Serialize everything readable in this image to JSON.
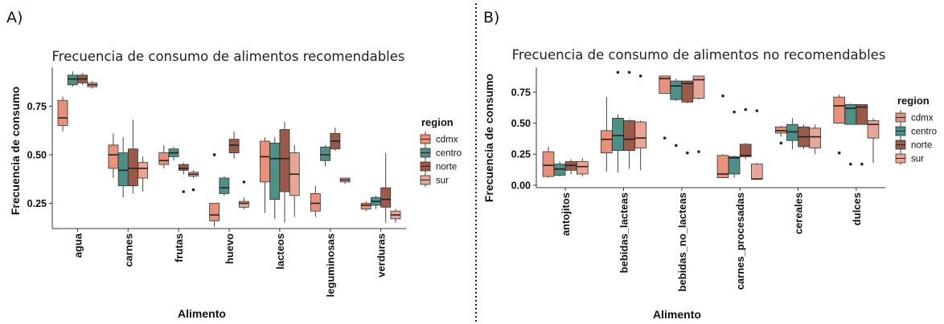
{
  "panel_labels": [
    "A)",
    "B)"
  ],
  "colors": {
    "cdmx": "#E8907A",
    "centro": "#4E8F87",
    "norte": "#9A5A4A",
    "sur": "#E8A598",
    "stroke": "#333333",
    "separator": "#222222"
  },
  "chart_data": [
    {
      "type": "box",
      "title": "Frecuencia de consumo de alimentos recomendables",
      "xlabel": "Alimento",
      "ylabel": "Frecuencia de consumo",
      "ylim": [
        0.12,
        0.95
      ],
      "yticks": [
        0.25,
        0.5,
        0.75
      ],
      "ytick_labels": [
        "0.25",
        "0.50",
        "0.75"
      ],
      "legend": {
        "title": "region",
        "entries": [
          "cdmx",
          "centro",
          "norte",
          "sur"
        ],
        "position": "right"
      },
      "categories": [
        "agua",
        "carnes",
        "frutas",
        "huevo",
        "lacteos",
        "leguminosas",
        "verduras"
      ],
      "series": [
        {
          "name": "cdmx",
          "boxes": [
            {
              "wlo": 0.62,
              "q1": 0.65,
              "med": 0.69,
              "q3": 0.78,
              "whi": 0.8,
              "out": []
            },
            {
              "wlo": 0.38,
              "q1": 0.43,
              "med": 0.5,
              "q3": 0.55,
              "whi": 0.61,
              "out": []
            },
            {
              "wlo": 0.43,
              "q1": 0.45,
              "med": 0.47,
              "q3": 0.51,
              "whi": 0.55,
              "out": []
            },
            {
              "wlo": 0.13,
              "q1": 0.16,
              "med": 0.19,
              "q3": 0.25,
              "whi": 0.25,
              "out": [
                0.5
              ]
            },
            {
              "wlo": 0.2,
              "q1": 0.36,
              "med": 0.49,
              "q3": 0.57,
              "whi": 0.59,
              "out": []
            },
            {
              "wlo": 0.18,
              "q1": 0.21,
              "med": 0.25,
              "q3": 0.3,
              "whi": 0.34,
              "out": []
            },
            {
              "wlo": 0.21,
              "q1": 0.22,
              "med": 0.24,
              "q3": 0.25,
              "whi": 0.26,
              "out": []
            }
          ]
        },
        {
          "name": "centro",
          "boxes": [
            {
              "wlo": 0.85,
              "q1": 0.86,
              "med": 0.89,
              "q3": 0.91,
              "whi": 0.93,
              "out": []
            },
            {
              "wlo": 0.28,
              "q1": 0.34,
              "med": 0.42,
              "q3": 0.51,
              "whi": 0.59,
              "out": []
            },
            {
              "wlo": 0.47,
              "q1": 0.49,
              "med": 0.51,
              "q3": 0.53,
              "whi": 0.54,
              "out": []
            },
            {
              "wlo": 0.29,
              "q1": 0.3,
              "med": 0.33,
              "q3": 0.38,
              "whi": 0.39,
              "out": []
            },
            {
              "wlo": 0.17,
              "q1": 0.27,
              "med": 0.48,
              "q3": 0.56,
              "whi": 0.59,
              "out": []
            },
            {
              "wlo": 0.44,
              "q1": 0.47,
              "med": 0.5,
              "q3": 0.54,
              "whi": 0.55,
              "out": []
            },
            {
              "wlo": 0.22,
              "q1": 0.24,
              "med": 0.26,
              "q3": 0.28,
              "whi": 0.29,
              "out": []
            }
          ]
        },
        {
          "name": "norte",
          "boxes": [
            {
              "wlo": 0.86,
              "q1": 0.87,
              "med": 0.89,
              "q3": 0.91,
              "whi": 0.92,
              "out": []
            },
            {
              "wlo": 0.3,
              "q1": 0.34,
              "med": 0.43,
              "q3": 0.53,
              "whi": 0.68,
              "out": []
            },
            {
              "wlo": 0.4,
              "q1": 0.42,
              "med": 0.43,
              "q3": 0.45,
              "whi": 0.46,
              "out": [
                0.31
              ]
            },
            {
              "wlo": 0.48,
              "q1": 0.51,
              "med": 0.55,
              "q3": 0.58,
              "whi": 0.62,
              "out": []
            },
            {
              "wlo": 0.15,
              "q1": 0.31,
              "med": 0.48,
              "q3": 0.63,
              "whi": 0.67,
              "out": []
            },
            {
              "wlo": 0.52,
              "q1": 0.53,
              "med": 0.57,
              "q3": 0.61,
              "whi": 0.64,
              "out": []
            },
            {
              "wlo": 0.15,
              "q1": 0.23,
              "med": 0.27,
              "q3": 0.33,
              "whi": 0.51,
              "out": []
            }
          ]
        },
        {
          "name": "sur",
          "boxes": [
            {
              "wlo": 0.84,
              "q1": 0.85,
              "med": 0.86,
              "q3": 0.87,
              "whi": 0.88,
              "out": []
            },
            {
              "wlo": 0.31,
              "q1": 0.38,
              "med": 0.43,
              "q3": 0.46,
              "whi": 0.49,
              "out": []
            },
            {
              "wlo": 0.38,
              "q1": 0.39,
              "med": 0.4,
              "q3": 0.41,
              "whi": 0.42,
              "out": [
                0.32
              ]
            },
            {
              "wlo": 0.22,
              "q1": 0.23,
              "med": 0.25,
              "q3": 0.26,
              "whi": 0.28,
              "out": [
                0.36
              ]
            },
            {
              "wlo": 0.18,
              "q1": 0.29,
              "med": 0.4,
              "q3": 0.51,
              "whi": 0.55,
              "out": []
            },
            {
              "wlo": 0.35,
              "q1": 0.36,
              "med": 0.37,
              "q3": 0.38,
              "whi": 0.38,
              "out": []
            },
            {
              "wlo": 0.15,
              "q1": 0.17,
              "med": 0.19,
              "q3": 0.21,
              "whi": 0.22,
              "out": []
            }
          ]
        }
      ]
    },
    {
      "type": "box",
      "title": "Frecuencia de consumo de alimentos no recomendables",
      "xlabel": "Alimento",
      "ylabel": "Frecuencia de consumo",
      "ylim": [
        -0.02,
        0.95
      ],
      "yticks": [
        0.0,
        0.25,
        0.5,
        0.75
      ],
      "ytick_labels": [
        "0.00",
        "0.25",
        "0.50",
        "0.75"
      ],
      "legend": {
        "title": "region",
        "entries": [
          "cdmx",
          "centro",
          "norte",
          "sur"
        ],
        "position": "right"
      },
      "categories": [
        "antojitos",
        "bebidas_lacteas",
        "bebidas_no_lacteas",
        "carnes_procesadas",
        "cereales",
        "dulces"
      ],
      "series": [
        {
          "name": "cdmx",
          "boxes": [
            {
              "wlo": 0.06,
              "q1": 0.07,
              "med": 0.16,
              "q3": 0.27,
              "whi": 0.31,
              "out": []
            },
            {
              "wlo": 0.11,
              "q1": 0.26,
              "med": 0.37,
              "q3": 0.44,
              "whi": 0.71,
              "out": []
            },
            {
              "wlo": 0.74,
              "q1": 0.74,
              "med": 0.86,
              "q3": 0.88,
              "whi": 0.88,
              "out": [
                0.38
              ]
            },
            {
              "wlo": 0.06,
              "q1": 0.06,
              "med": 0.09,
              "q3": 0.24,
              "whi": 0.25,
              "out": [
                0.72
              ]
            },
            {
              "wlo": 0.39,
              "q1": 0.42,
              "med": 0.44,
              "q3": 0.47,
              "whi": 0.48,
              "out": [
                0.34
              ]
            },
            {
              "wlo": 0.5,
              "q1": 0.5,
              "med": 0.64,
              "q3": 0.71,
              "whi": 0.73,
              "out": [
                0.26
              ]
            }
          ]
        },
        {
          "name": "centro",
          "boxes": [
            {
              "wlo": 0.07,
              "q1": 0.08,
              "med": 0.13,
              "q3": 0.17,
              "whi": 0.19,
              "out": []
            },
            {
              "wlo": 0.1,
              "q1": 0.28,
              "med": 0.4,
              "q3": 0.54,
              "whi": 0.57,
              "out": [
                0.91
              ]
            },
            {
              "wlo": 0.68,
              "q1": 0.69,
              "med": 0.8,
              "q3": 0.84,
              "whi": 0.86,
              "out": [
                0.32
              ]
            },
            {
              "wlo": 0.06,
              "q1": 0.09,
              "med": 0.22,
              "q3": 0.23,
              "whi": 0.24,
              "out": [
                0.59
              ]
            },
            {
              "wlo": 0.29,
              "q1": 0.36,
              "med": 0.43,
              "q3": 0.49,
              "whi": 0.54,
              "out": []
            },
            {
              "wlo": 0.49,
              "q1": 0.49,
              "med": 0.62,
              "q3": 0.65,
              "whi": 0.66,
              "out": [
                0.17
              ]
            }
          ]
        },
        {
          "name": "norte",
          "boxes": [
            {
              "wlo": 0.09,
              "q1": 0.12,
              "med": 0.16,
              "q3": 0.19,
              "whi": 0.21,
              "out": []
            },
            {
              "wlo": 0.13,
              "q1": 0.28,
              "med": 0.37,
              "q3": 0.52,
              "whi": 0.53,
              "out": [
                0.91
              ]
            },
            {
              "wlo": 0.66,
              "q1": 0.67,
              "med": 0.82,
              "q3": 0.84,
              "whi": 0.84,
              "out": [
                0.26
              ]
            },
            {
              "wlo": 0.21,
              "q1": 0.23,
              "med": 0.24,
              "q3": 0.33,
              "whi": 0.34,
              "out": [
                0.61
              ]
            },
            {
              "wlo": 0.29,
              "q1": 0.31,
              "med": 0.39,
              "q3": 0.47,
              "whi": 0.49,
              "out": []
            },
            {
              "wlo": 0.49,
              "q1": 0.49,
              "med": 0.63,
              "q3": 0.65,
              "whi": 0.65,
              "out": [
                0.17
              ]
            }
          ]
        },
        {
          "name": "sur",
          "boxes": [
            {
              "wlo": 0.07,
              "q1": 0.09,
              "med": 0.15,
              "q3": 0.19,
              "whi": 0.22,
              "out": []
            },
            {
              "wlo": 0.12,
              "q1": 0.3,
              "med": 0.38,
              "q3": 0.51,
              "whi": 0.52,
              "out": [
                0.88
              ]
            },
            {
              "wlo": 0.69,
              "q1": 0.7,
              "med": 0.85,
              "q3": 0.88,
              "whi": 0.88,
              "out": [
                0.27
              ]
            },
            {
              "wlo": 0.04,
              "q1": 0.05,
              "med": 0.05,
              "q3": 0.17,
              "whi": 0.18,
              "out": [
                0.6
              ]
            },
            {
              "wlo": 0.25,
              "q1": 0.3,
              "med": 0.39,
              "q3": 0.46,
              "whi": 0.49,
              "out": []
            },
            {
              "wlo": 0.18,
              "q1": 0.38,
              "med": 0.49,
              "q3": 0.52,
              "whi": 0.54,
              "out": []
            }
          ]
        }
      ]
    }
  ]
}
